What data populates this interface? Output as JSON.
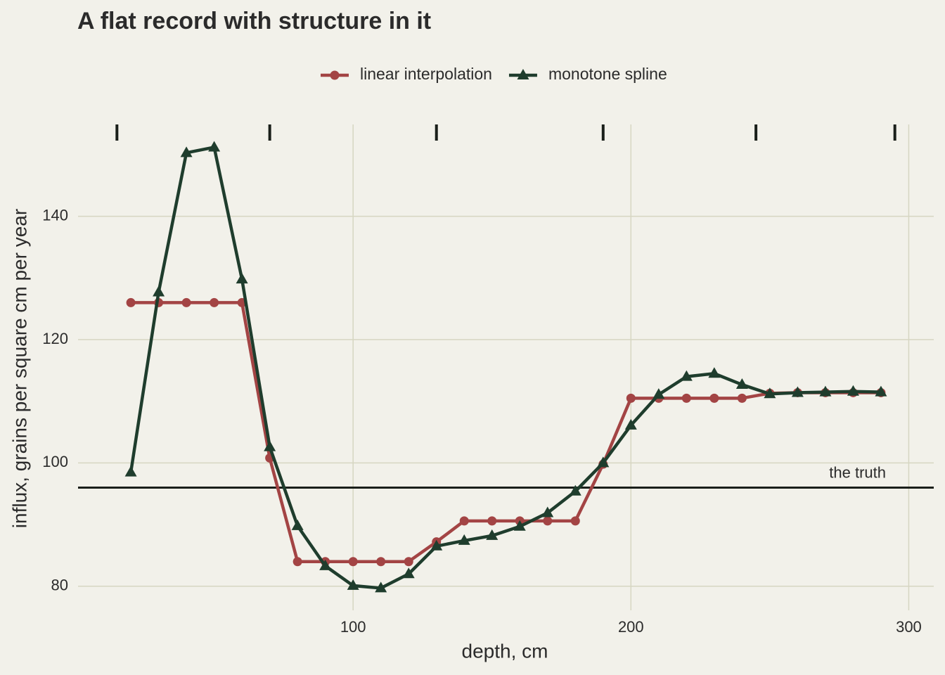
{
  "chart_data": {
    "type": "line",
    "title": "A flat record with structure in it",
    "x_label": "depth, cm",
    "y_label": "influx, grains per square cm per year",
    "x": [
      20,
      30,
      40,
      50,
      60,
      70,
      80,
      90,
      100,
      110,
      120,
      130,
      140,
      150,
      160,
      170,
      180,
      190,
      200,
      210,
      220,
      230,
      240,
      250,
      260,
      270,
      280,
      290
    ],
    "series": [
      {
        "name": "linear interpolation",
        "color": "#a34444",
        "marker": "circle",
        "values": [
          126,
          126,
          126,
          126,
          126,
          100.8,
          84,
          84,
          84,
          84,
          84,
          87.2,
          90.6,
          90.6,
          90.6,
          90.6,
          90.6,
          99.8,
          110.5,
          110.5,
          110.5,
          110.5,
          110.5,
          111.3,
          111.4,
          111.4,
          111.4,
          111.4
        ]
      },
      {
        "name": "monotone spline",
        "color": "#1f3d2d",
        "marker": "triangle",
        "values": [
          98.5,
          127.7,
          150.3,
          151.2,
          129.8,
          102.6,
          89.8,
          83.3,
          80.1,
          79.7,
          82,
          86.5,
          87.4,
          88.2,
          89.7,
          91.9,
          95.4,
          100,
          106.1,
          111.1,
          114,
          114.5,
          112.7,
          111.2,
          111.4,
          111.5,
          111.6,
          111.5
        ]
      }
    ],
    "rug": [
      15,
      70,
      130,
      190,
      245,
      295
    ],
    "hline": {
      "value": 96,
      "label": "the truth",
      "color": "#1a1f1a"
    },
    "xlim": [
      1,
      309
    ],
    "ylim": [
      76.1,
      154.9
    ],
    "xticks": [
      100,
      200,
      300
    ],
    "yticks": [
      80,
      100,
      120,
      140
    ],
    "grid": true,
    "legend": "top"
  }
}
